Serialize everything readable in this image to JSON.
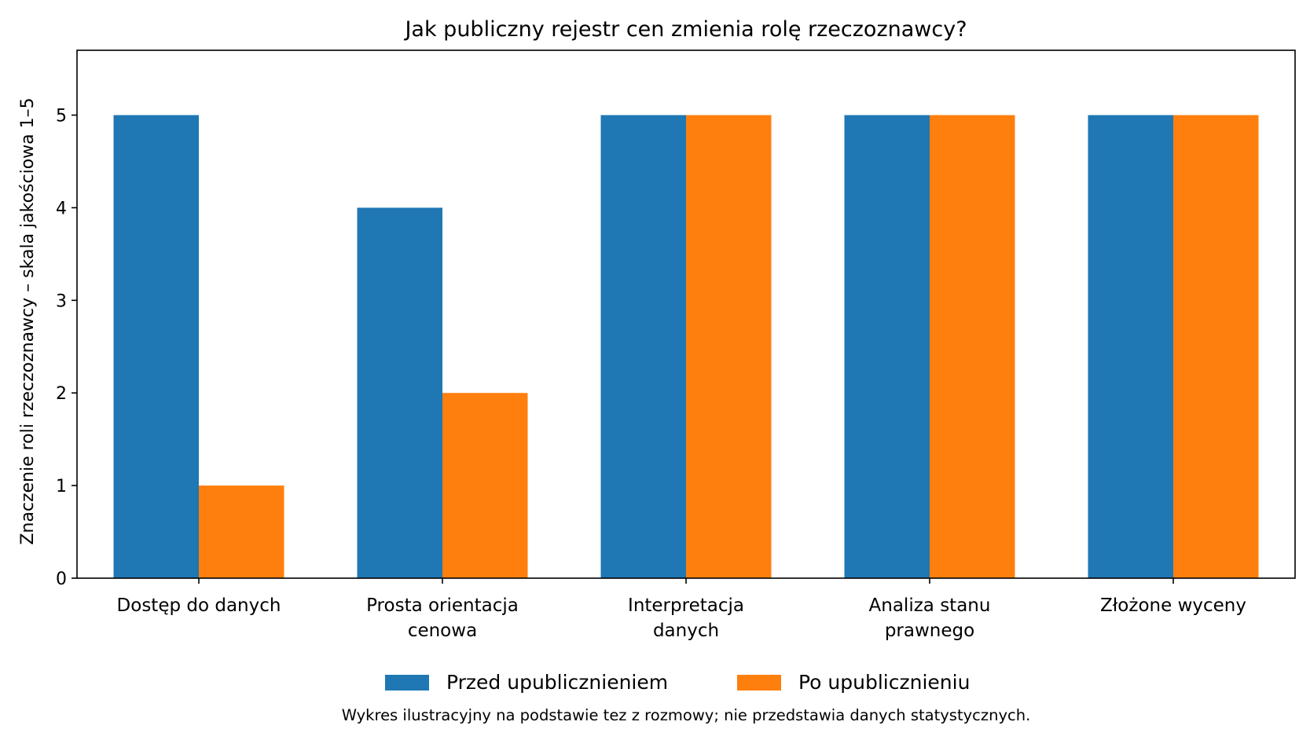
{
  "chart_data": {
    "type": "bar",
    "title": "Jak publiczny rejestr cen zmienia rolę rzeczoznawcy?",
    "xlabel": "",
    "ylabel": "Znaczenie roli rzeczoznawcy – skala jakościowa 1–5",
    "categories": [
      [
        "Dostęp do danych"
      ],
      [
        "Prosta orientacja",
        "cenowa"
      ],
      [
        "Interpretacja",
        "danych"
      ],
      [
        "Analiza stanu",
        "prawnego"
      ],
      [
        "Złożone wyceny"
      ]
    ],
    "series": [
      {
        "name": "Przed upublicznieniem",
        "color": "#1f77b4",
        "values": [
          5,
          4,
          5,
          5,
          5
        ]
      },
      {
        "name": "Po upublicznieniu",
        "color": "#ff7f0e",
        "values": [
          1,
          2,
          5,
          5,
          5
        ]
      }
    ],
    "ylim": [
      0,
      5.7
    ],
    "yticks": [
      0,
      1,
      2,
      3,
      4,
      5
    ],
    "grid": false,
    "legend_position": "bottom-center",
    "footnote": "Wykres ilustracyjny na podstawie tez z rozmowy; nie przedstawia danych statystycznych."
  }
}
